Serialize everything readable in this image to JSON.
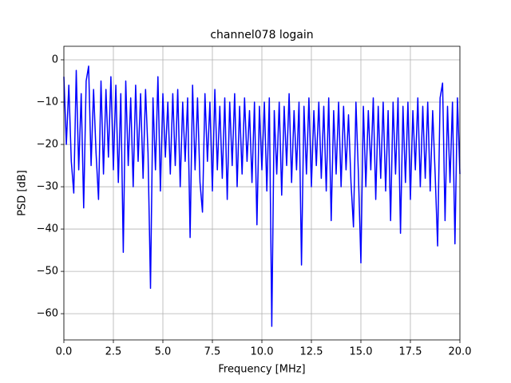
{
  "chart_data": {
    "type": "line",
    "title": "channel078 logain",
    "xlabel": "Frequency [MHz]",
    "ylabel": "PSD [dB]",
    "xlim": [
      0,
      20
    ],
    "ylim": [
      -66.2,
      3.2
    ],
    "xticks": [
      {
        "value": 0,
        "label": "0.0"
      },
      2.5,
      {
        "value": 5,
        "label": "5.0"
      },
      7.5,
      {
        "value": 10,
        "label": "10.0"
      },
      12.5,
      {
        "value": 15,
        "label": "15.0"
      },
      17.5,
      {
        "value": 20,
        "label": "20.0"
      }
    ],
    "yticks": [
      {
        "value": 0,
        "label": "0"
      },
      {
        "value": -10,
        "label": "−10"
      },
      {
        "value": -20,
        "label": "−20"
      },
      {
        "value": -30,
        "label": "−30"
      },
      {
        "value": -40,
        "label": "−40"
      },
      {
        "value": -50,
        "label": "−50"
      },
      {
        "value": -60,
        "label": "−60"
      }
    ],
    "grid": true,
    "x": [
      0,
      0.125,
      0.25,
      0.375,
      0.5,
      0.625,
      0.75,
      0.875,
      1,
      1.125,
      1.25,
      1.375,
      1.5,
      1.625,
      1.75,
      1.875,
      2,
      2.125,
      2.25,
      2.375,
      2.5,
      2.625,
      2.75,
      2.875,
      3,
      3.125,
      3.25,
      3.375,
      3.5,
      3.625,
      3.75,
      3.875,
      4,
      4.125,
      4.25,
      4.375,
      4.5,
      4.625,
      4.75,
      4.875,
      5,
      5.125,
      5.25,
      5.375,
      5.5,
      5.625,
      5.75,
      5.875,
      6,
      6.125,
      6.25,
      6.375,
      6.5,
      6.625,
      6.75,
      6.875,
      7,
      7.125,
      7.25,
      7.375,
      7.5,
      7.625,
      7.75,
      7.875,
      8,
      8.125,
      8.25,
      8.375,
      8.5,
      8.625,
      8.75,
      8.875,
      9,
      9.125,
      9.25,
      9.375,
      9.5,
      9.625,
      9.75,
      9.875,
      10,
      10.125,
      10.25,
      10.375,
      10.5,
      10.625,
      10.75,
      10.875,
      11,
      11.125,
      11.25,
      11.375,
      11.5,
      11.625,
      11.75,
      11.875,
      12,
      12.125,
      12.25,
      12.375,
      12.5,
      12.625,
      12.75,
      12.875,
      13,
      13.125,
      13.25,
      13.375,
      13.5,
      13.625,
      13.75,
      13.875,
      14,
      14.125,
      14.25,
      14.375,
      14.5,
      14.625,
      14.75,
      14.875,
      15,
      15.125,
      15.25,
      15.375,
      15.5,
      15.625,
      15.75,
      15.875,
      16,
      16.125,
      16.25,
      16.375,
      16.5,
      16.625,
      16.75,
      16.875,
      17,
      17.125,
      17.25,
      17.375,
      17.5,
      17.625,
      17.75,
      17.875,
      18,
      18.125,
      18.25,
      18.375,
      18.5,
      18.625,
      18.75,
      18.875,
      19,
      19.125,
      19.25,
      19.375,
      19.5,
      19.625,
      19.75,
      19.875,
      20
    ],
    "series": [
      {
        "color": "#0000ff",
        "values": [
          -4,
          -20,
          -6,
          -24,
          -31.5,
          -2.5,
          -26,
          -8,
          -35,
          -5,
          -1.5,
          -25,
          -7,
          -22,
          -33,
          -5,
          -27,
          -7,
          -23,
          -4,
          -26,
          -6,
          -29,
          -8,
          -45.5,
          -5,
          -25,
          -9,
          -30,
          -6,
          -24,
          -8,
          -28,
          -7,
          -22,
          -54,
          -9,
          -26,
          -4,
          -31,
          -8,
          -23,
          -10,
          -27,
          -8,
          -25,
          -7,
          -30,
          -10,
          -24,
          -9,
          -42,
          -6,
          -26,
          -9,
          -29,
          -36,
          -8,
          -24,
          -10,
          -31,
          -7,
          -26,
          -11,
          -28,
          -9,
          -33,
          -10,
          -25,
          -8,
          -30,
          -11,
          -27,
          -9,
          -24,
          -12,
          -29,
          -10,
          -39,
          -11,
          -26,
          -10,
          -31,
          -9,
          -63,
          -12,
          -27,
          -10,
          -32,
          -11,
          -25,
          -8,
          -29,
          -12,
          -26,
          -10,
          -48.5,
          -11,
          -27,
          -9,
          -30,
          -12,
          -25,
          -10,
          -28,
          -11,
          -31,
          -9,
          -38,
          -12,
          -27,
          -10,
          -30,
          -11,
          -26,
          -13,
          -29,
          -39.5,
          -10,
          -27,
          -48,
          -11,
          -30,
          -12,
          -26,
          -9,
          -33,
          -11,
          -28,
          -10,
          -31,
          -12,
          -38,
          -10,
          -27,
          -9,
          -41,
          -11,
          -29,
          -10,
          -33,
          -12,
          -26,
          -9,
          -30,
          -11,
          -28,
          -10,
          -31,
          -12,
          -27,
          -44,
          -9,
          -5.5,
          -38,
          -11,
          -29,
          -10,
          -43.5,
          -9,
          -27
        ]
      }
    ]
  }
}
